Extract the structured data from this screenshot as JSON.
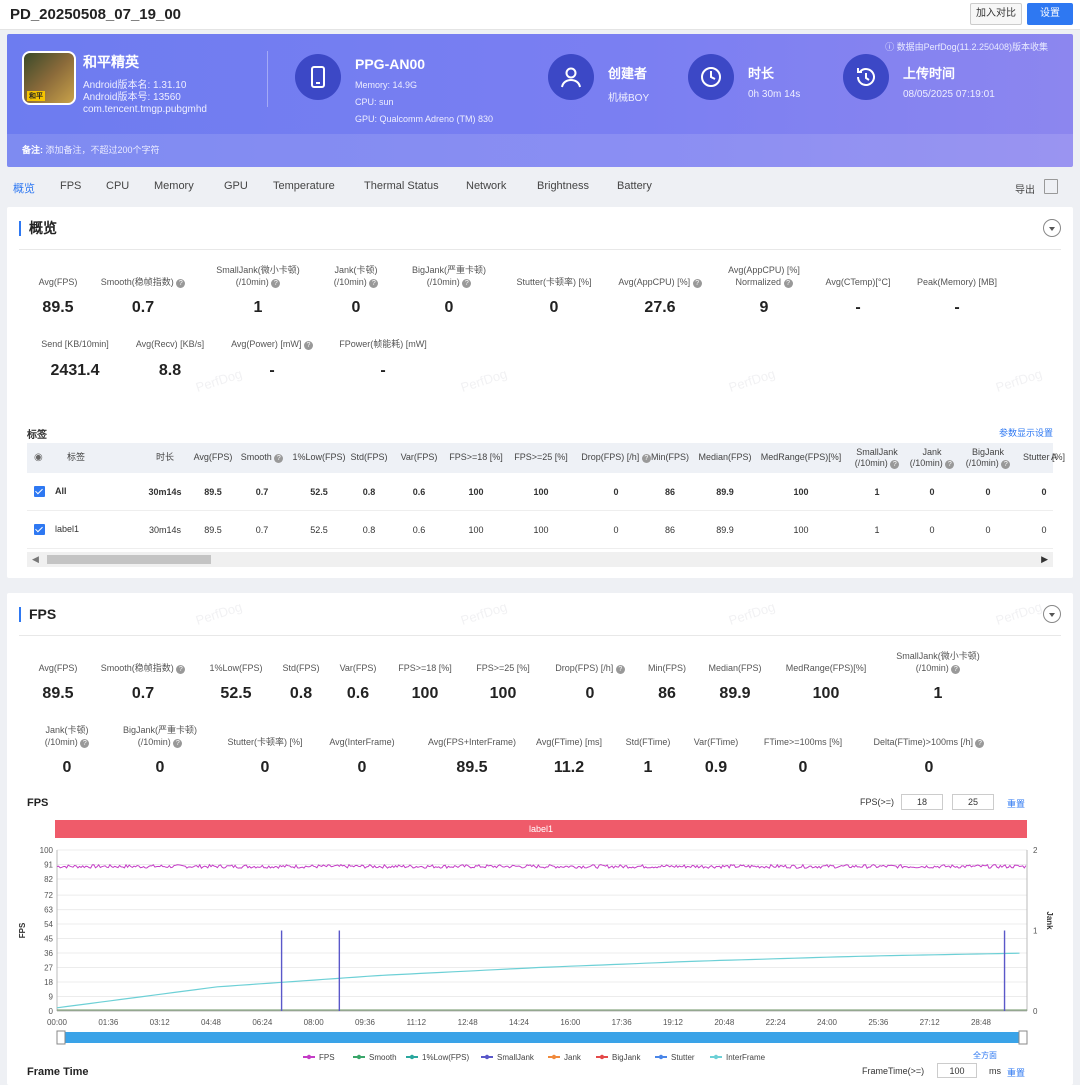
{
  "window": {
    "title": "PD_20250508_07_19_00",
    "compare_label": "加入对比",
    "settings_label": "设置"
  },
  "banner": {
    "source_note": "ⓘ 数据由PerfDog(11.2.250408)版本收集",
    "app": {
      "name": "和平精英",
      "version_name": "Android版本名: 1.31.10",
      "version_code": "Android版本号: 13560",
      "package": "com.tencent.tmgp.pubgmhd"
    },
    "device": {
      "model": "PPG-AN00",
      "memory": "Memory: 14.9G",
      "cpu": "CPU: sun",
      "gpu": "GPU: Qualcomm Adreno (TM) 830"
    },
    "creator": {
      "label": "创建者",
      "value": "机械BOY"
    },
    "duration": {
      "label": "时长",
      "value": "0h 30m 14s"
    },
    "upload": {
      "label": "上传时间",
      "value": "08/05/2025 07:19:01"
    },
    "note_label": "备注:",
    "note_placeholder": "添加备注，不超过200个字符"
  },
  "tabs": [
    "概览",
    "FPS",
    "CPU",
    "Memory",
    "GPU",
    "Temperature",
    "Thermal Status",
    "Network",
    "Brightness",
    "Battery"
  ],
  "export_label": "导出",
  "overview": {
    "title": "概览",
    "row1": [
      {
        "label": "Avg(FPS)",
        "value": "89.5"
      },
      {
        "label": "Smooth(稳帧指数) ?",
        "value": "0.7"
      },
      {
        "label": "SmallJank(微小卡顿)\n(/10min) ?",
        "value": "1"
      },
      {
        "label": "Jank(卡顿)\n(/10min) ?",
        "value": "0"
      },
      {
        "label": "BigJank(严重卡顿)\n(/10min) ?",
        "value": "0"
      },
      {
        "label": "Stutter(卡顿率) [%]",
        "value": "0"
      },
      {
        "label": "Avg(AppCPU) [%] ?",
        "value": "27.6"
      },
      {
        "label": "Avg(AppCPU) [%]\nNormalized ?",
        "value": "9"
      },
      {
        "label": "Avg(CTemp)[°C]",
        "value": "-"
      },
      {
        "label": "Peak(Memory) [MB]",
        "value": "-"
      }
    ],
    "row2": [
      {
        "label": "Send [KB/10min]",
        "value": "2431.4"
      },
      {
        "label": "Avg(Recv) [KB/s]",
        "value": "8.8"
      },
      {
        "label": "Avg(Power) [mW] ?",
        "value": "-"
      },
      {
        "label": "FPower(帧能耗) [mW]",
        "value": "-"
      }
    ],
    "table_label": "标签",
    "table_settings": "参数显示设置",
    "columns": [
      "标签",
      "时长",
      "Avg(FPS)",
      "Smooth ?",
      "1%Low(FPS)",
      "Std(FPS)",
      "Var(FPS)",
      "FPS>=18 [%]",
      "FPS>=25 [%]",
      "Drop(FPS) [/h] ?",
      "Min(FPS)",
      "Median(FPS)",
      "MedRange(FPS)[%]",
      "SmallJank\n(/10min) ?",
      "Jank\n(/10min) ?",
      "BigJank\n(/10min) ?",
      "Stutter [%]",
      "A"
    ],
    "rows": [
      {
        "name": "All",
        "cells": [
          "30m14s",
          "89.5",
          "0.7",
          "52.5",
          "0.8",
          "0.6",
          "100",
          "100",
          "0",
          "86",
          "89.9",
          "100",
          "1",
          "0",
          "0",
          "0"
        ],
        "bold": true
      },
      {
        "name": "label1",
        "cells": [
          "30m14s",
          "89.5",
          "0.7",
          "52.5",
          "0.8",
          "0.6",
          "100",
          "100",
          "0",
          "86",
          "89.9",
          "100",
          "1",
          "0",
          "0",
          "0"
        ],
        "bold": false
      }
    ]
  },
  "fps_section": {
    "title": "FPS",
    "row1": [
      {
        "label": "Avg(FPS)",
        "value": "89.5"
      },
      {
        "label": "Smooth(稳帧指数) ?",
        "value": "0.7"
      },
      {
        "label": "1%Low(FPS)",
        "value": "52.5"
      },
      {
        "label": "Std(FPS)",
        "value": "0.8"
      },
      {
        "label": "Var(FPS)",
        "value": "0.6"
      },
      {
        "label": "FPS>=18 [%]",
        "value": "100"
      },
      {
        "label": "FPS>=25 [%]",
        "value": "100"
      },
      {
        "label": "Drop(FPS) [/h] ?",
        "value": "0"
      },
      {
        "label": "Min(FPS)",
        "value": "86"
      },
      {
        "label": "Median(FPS)",
        "value": "89.9"
      },
      {
        "label": "MedRange(FPS)[%]",
        "value": "100"
      },
      {
        "label": "SmallJank(微小卡顿)\n(/10min) ?",
        "value": "1"
      }
    ],
    "row2": [
      {
        "label": "Jank(卡顿)\n(/10min) ?",
        "value": "0"
      },
      {
        "label": "BigJank(严重卡顿)\n(/10min) ?",
        "value": "0"
      },
      {
        "label": "Stutter(卡顿率) [%]",
        "value": "0"
      },
      {
        "label": "Avg(InterFrame)",
        "value": "0"
      },
      {
        "label": "Avg(FPS+InterFrame)",
        "value": "89.5"
      },
      {
        "label": "Avg(FTime) [ms]",
        "value": "11.2"
      },
      {
        "label": "Std(FTime)",
        "value": "1"
      },
      {
        "label": "Var(FTime)",
        "value": "0.9"
      },
      {
        "label": "FTime>=100ms [%]",
        "value": "0"
      },
      {
        "label": "Delta(FTime)>100ms [/h] ?",
        "value": "0"
      }
    ],
    "chart_title": "FPS",
    "threshold_label": "FPS(>=)",
    "threshold_1": "18",
    "threshold_2": "25",
    "reset_label": "重置",
    "band_label": "label1",
    "fullscreen_label": "全方面",
    "frame_time_title": "Frame Time",
    "frame_time_label": "FrameTime(>=)",
    "frame_time_unit": "ms",
    "frame_time_reset": "重置",
    "frame_time_input": "100"
  },
  "chart_data": {
    "type": "line",
    "ylabel": "FPS",
    "y2label": "Jank",
    "ylim": [
      0,
      100
    ],
    "y2lim": [
      0,
      2
    ],
    "yticks": [
      0,
      9,
      18,
      27,
      36,
      45,
      54,
      63,
      72,
      82,
      91,
      100
    ],
    "y2ticks": [
      0,
      1,
      2
    ],
    "xticks": [
      "00:00",
      "01:36",
      "03:12",
      "04:48",
      "06:24",
      "08:00",
      "09:36",
      "11:12",
      "12:48",
      "14:24",
      "16:00",
      "17:36",
      "19:12",
      "20:48",
      "22:24",
      "24:00",
      "25:36",
      "27:12",
      "28:48"
    ],
    "duration_seconds": 1814,
    "series": [
      {
        "name": "FPS",
        "color": "#c43cc6",
        "approx_value": 89.8
      },
      {
        "name": "Smooth",
        "color": "#3aa66a"
      },
      {
        "name": "1%Low(FPS)",
        "color": "#2aa79e"
      },
      {
        "name": "SmallJank",
        "color": "#5a58c9",
        "events_time": [
          "07:00",
          "08:48",
          "29:32"
        ],
        "events_value": 1
      },
      {
        "name": "Jank",
        "color": "#f08a3c"
      },
      {
        "name": "BigJank",
        "color": "#e44a4a"
      },
      {
        "name": "Stutter",
        "color": "#4a86e8"
      },
      {
        "name": "InterFrame",
        "color": "#6dd0d6",
        "curve_points": [
          [
            0,
            2
          ],
          [
            300,
            15
          ],
          [
            600,
            22
          ],
          [
            900,
            27
          ],
          [
            1200,
            31
          ],
          [
            1500,
            34
          ],
          [
            1814,
            36
          ]
        ]
      }
    ],
    "legend_placement": "bottom",
    "grid": true
  },
  "colors": {
    "accent": "#2e78f2",
    "banner": "#7b7ff2",
    "band": "#ef5b6a"
  }
}
